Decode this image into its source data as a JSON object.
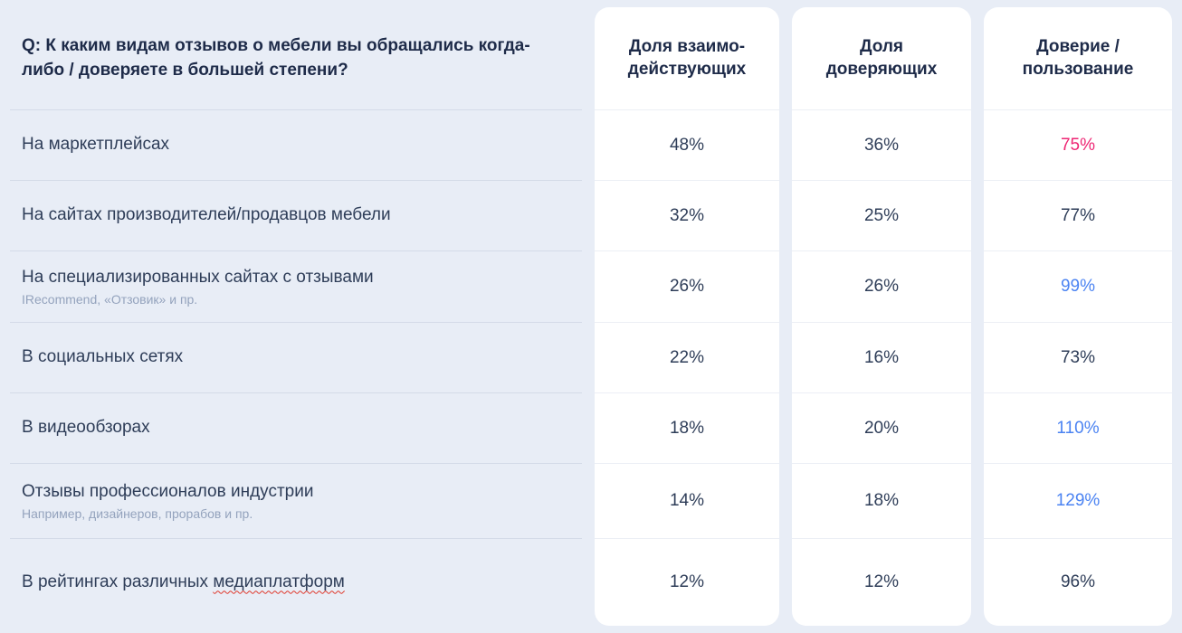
{
  "header": {
    "question": "Q: К каким видам отзывов о мебели вы обращались когда-либо / доверяете в большей степени?"
  },
  "colors": {
    "background": "#e8edf6",
    "accent_pink": "#ee2674",
    "accent_blue": "#4b83f2",
    "text_dark": "#2e3d58",
    "subtitle_gray": "#94a3bd"
  },
  "table": {
    "columns": [
      {
        "line1": "Доля взаимо-",
        "line2": "действующих"
      },
      {
        "line1": "Доля",
        "line2": "доверяющих"
      },
      {
        "line1": "Доверие /",
        "line2": "пользование"
      }
    ],
    "rows": [
      {
        "label": "На маркетплейсах",
        "interacting": "48%",
        "trusting": "36%",
        "ratio": "75%",
        "ratio_color": "#ee2674"
      },
      {
        "label": "На сайтах производителей/продавцов мебели",
        "interacting": "32%",
        "trusting": "25%",
        "ratio": "77%",
        "ratio_color": "#2e3d58"
      },
      {
        "label": "На специализированных сайтах с отзывами",
        "sub": "IRecommend, «Отзовик» и пр.",
        "interacting": "26%",
        "trusting": "26%",
        "ratio": "99%",
        "ratio_color": "#4b83f2"
      },
      {
        "label": "В социальных сетях",
        "interacting": "22%",
        "trusting": "16%",
        "ratio": "73%",
        "ratio_color": "#2e3d58"
      },
      {
        "label": "В видеообзорах",
        "interacting": "18%",
        "trusting": "20%",
        "ratio": "110%",
        "ratio_color": "#4b83f2"
      },
      {
        "label": "Отзывы профессионалов индустрии",
        "sub": "Например, дизайнеров, прорабов и пр.",
        "interacting": "14%",
        "trusting": "18%",
        "ratio": "129%",
        "ratio_color": "#4b83f2"
      },
      {
        "label": "В рейтингах различных ",
        "label_underlined": "медиаплатформ",
        "interacting": "12%",
        "trusting": "12%",
        "ratio": "96%",
        "ratio_color": "#2e3d58"
      }
    ]
  },
  "chart_data": {
    "type": "table",
    "title": "Q: К каким видам отзывов о мебели вы обращались когда-либо / доверяете в большей степени?",
    "columns": [
      "Доля взаимодействующих",
      "Доля доверяющих",
      "Доверие / пользование"
    ],
    "units": "%",
    "rows": [
      {
        "category": "На маркетплейсах",
        "interacting": 48,
        "trusting": 36,
        "trust_usage": 75
      },
      {
        "category": "На сайтах производителей/продавцов мебели",
        "interacting": 32,
        "trusting": 25,
        "trust_usage": 77
      },
      {
        "category": "На специализированных сайтах с отзывами",
        "note": "IRecommend, «Отзовик» и пр.",
        "interacting": 26,
        "trusting": 26,
        "trust_usage": 99
      },
      {
        "category": "В социальных сетях",
        "interacting": 22,
        "trusting": 16,
        "trust_usage": 73
      },
      {
        "category": "В видеообзорах",
        "interacting": 18,
        "trusting": 20,
        "trust_usage": 110
      },
      {
        "category": "Отзывы профессионалов индустрии",
        "note": "Например, дизайнеров, прорабов и пр.",
        "interacting": 14,
        "trusting": 18,
        "trust_usage": 129
      },
      {
        "category": "В рейтингах различных медиаплатформ",
        "interacting": 12,
        "trusting": 12,
        "trust_usage": 96
      }
    ]
  }
}
